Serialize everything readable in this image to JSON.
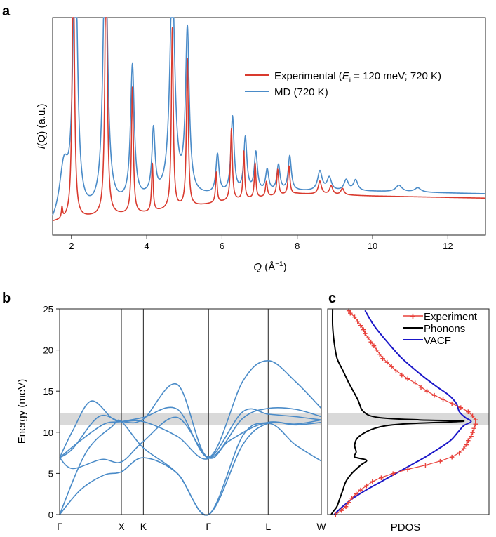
{
  "panels": {
    "a": "a",
    "b": "b",
    "c": "c"
  },
  "colors": {
    "experimental": "#d93a2e",
    "md": "#4a8bc8",
    "dispersion": "#4a8bc8",
    "experiment_c": "#e8403a",
    "phonons": "#000000",
    "vacf": "#1a16c8",
    "band": "#d9d9d9"
  },
  "chart_data": [
    {
      "type": "line",
      "panel": "a",
      "xlabel_main": "Q",
      "xlabel_rest": " (Å",
      "xlabel_sup": "−1",
      "xlabel_close": ")",
      "ylabel_main": "I",
      "ylabel_rest": "(Q) (a.u.)",
      "xlim": [
        1.5,
        13.0
      ],
      "ylim": [
        0,
        1
      ],
      "xticks": [
        2,
        4,
        6,
        8,
        10,
        12
      ],
      "xtick_labels": [
        "2",
        "4",
        "6",
        "8",
        "10",
        "12"
      ],
      "legend_placement": "top-right",
      "legend": {
        "experimental_pre": "Experimental (",
        "experimental_var": "E",
        "experimental_sub": "i",
        "experimental_post": " = 120 meV; 720 K)",
        "md": "MD (720 K)"
      },
      "series": [
        {
          "key": "experimental",
          "baseline": [
            [
              1.5,
              0.06
            ],
            [
              2.5,
              0.08
            ],
            [
              4.0,
              0.1
            ],
            [
              6.0,
              0.15
            ],
            [
              8.0,
              0.19
            ],
            [
              10.0,
              0.18
            ],
            [
              13.0,
              0.17
            ]
          ],
          "peaks": [
            [
              1.75,
              0.05,
              0.02
            ],
            [
              2.05,
              1.3,
              0.035
            ],
            [
              2.92,
              1.3,
              0.035
            ],
            [
              3.62,
              0.58,
              0.03
            ],
            [
              4.15,
              0.22,
              0.025
            ],
            [
              4.68,
              0.83,
              0.03
            ],
            [
              5.08,
              0.68,
              0.03
            ],
            [
              5.85,
              0.14,
              0.025
            ],
            [
              6.25,
              0.33,
              0.03
            ],
            [
              6.58,
              0.22,
              0.025
            ],
            [
              6.88,
              0.16,
              0.025
            ],
            [
              7.18,
              0.07,
              0.03
            ],
            [
              7.48,
              0.12,
              0.03
            ],
            [
              7.78,
              0.13,
              0.03
            ],
            [
              8.6,
              0.06,
              0.05
            ],
            [
              8.9,
              0.04,
              0.05
            ],
            [
              9.2,
              0.03,
              0.05
            ]
          ]
        },
        {
          "key": "md",
          "baseline": [
            [
              1.5,
              0.02
            ],
            [
              2.5,
              0.09
            ],
            [
              4.0,
              0.16
            ],
            [
              6.0,
              0.18
            ],
            [
              8.0,
              0.2
            ],
            [
              10.0,
              0.2
            ],
            [
              13.0,
              0.19
            ]
          ],
          "peaks": [
            [
              1.8,
              0.25,
              0.15
            ],
            [
              2.1,
              1.3,
              0.07
            ],
            [
              2.9,
              1.3,
              0.07
            ],
            [
              3.62,
              0.62,
              0.06
            ],
            [
              4.18,
              0.3,
              0.05
            ],
            [
              4.68,
              1.0,
              0.08
            ],
            [
              5.08,
              0.75,
              0.06
            ],
            [
              5.88,
              0.18,
              0.05
            ],
            [
              6.28,
              0.35,
              0.05
            ],
            [
              6.62,
              0.25,
              0.05
            ],
            [
              6.9,
              0.18,
              0.05
            ],
            [
              7.2,
              0.1,
              0.05
            ],
            [
              7.5,
              0.12,
              0.05
            ],
            [
              7.8,
              0.16,
              0.05
            ],
            [
              8.6,
              0.09,
              0.07
            ],
            [
              8.85,
              0.06,
              0.07
            ],
            [
              9.3,
              0.05,
              0.07
            ],
            [
              9.55,
              0.05,
              0.07
            ],
            [
              10.7,
              0.03,
              0.1
            ],
            [
              11.2,
              0.02,
              0.1
            ]
          ]
        }
      ]
    },
    {
      "type": "line",
      "panel": "b",
      "ylabel": "Energy (meV)",
      "ylim": [
        0,
        25
      ],
      "yticks": [
        0,
        5,
        10,
        15,
        20,
        25
      ],
      "ytick_labels": [
        "0",
        "5",
        "10",
        "15",
        "20",
        "25"
      ],
      "xlim": [
        0,
        1
      ],
      "kpoints": [
        0,
        0.236,
        0.32,
        0.569,
        0.797,
        1.0
      ],
      "kpoint_labels": [
        "Γ",
        "X",
        "K",
        "Γ",
        "L",
        "W"
      ],
      "highlight_band": [
        10.9,
        12.3
      ],
      "branches": [
        [
          [
            0,
            6.9
          ],
          [
            0.05,
            10.2
          ],
          [
            0.12,
            13.8
          ],
          [
            0.2,
            11.7
          ],
          [
            0.236,
            11.3
          ],
          [
            0.32,
            11.3
          ],
          [
            0.45,
            9.5
          ],
          [
            0.569,
            6.8
          ],
          [
            0.7,
            12.5
          ],
          [
            0.797,
            12.2
          ],
          [
            0.9,
            11.9
          ],
          [
            1.0,
            11.5
          ]
        ],
        [
          [
            0,
            6.9
          ],
          [
            0.05,
            8.0
          ],
          [
            0.15,
            11.9
          ],
          [
            0.236,
            11.3
          ],
          [
            0.32,
            11.6
          ],
          [
            0.45,
            15.8
          ],
          [
            0.569,
            7.0
          ],
          [
            0.7,
            16.2
          ],
          [
            0.797,
            18.7
          ],
          [
            0.9,
            16.2
          ],
          [
            1.0,
            12.9
          ]
        ],
        [
          [
            0,
            6.9
          ],
          [
            0.08,
            9.0
          ],
          [
            0.17,
            11.0
          ],
          [
            0.236,
            11.3
          ],
          [
            0.32,
            11.8
          ],
          [
            0.45,
            12.8
          ],
          [
            0.569,
            6.9
          ],
          [
            0.7,
            11.7
          ],
          [
            0.797,
            12.9
          ],
          [
            0.9,
            12.8
          ],
          [
            1.0,
            11.9
          ]
        ],
        [
          [
            0,
            6.9
          ],
          [
            0.05,
            5.6
          ],
          [
            0.16,
            6.7
          ],
          [
            0.236,
            6.4
          ],
          [
            0.32,
            8.9
          ],
          [
            0.45,
            11.8
          ],
          [
            0.569,
            6.9
          ],
          [
            0.65,
            9.0
          ],
          [
            0.797,
            11.1
          ],
          [
            0.9,
            8.5
          ],
          [
            1.0,
            6.5
          ]
        ],
        [
          [
            0,
            0.0
          ],
          [
            0.08,
            3.0
          ],
          [
            0.17,
            4.8
          ],
          [
            0.236,
            5.2
          ],
          [
            0.32,
            6.9
          ],
          [
            0.45,
            5.0
          ],
          [
            0.569,
            0.0
          ],
          [
            0.7,
            9.6
          ],
          [
            0.797,
            11.2
          ],
          [
            0.9,
            11.0
          ],
          [
            1.0,
            11.5
          ]
        ],
        [
          [
            0,
            0.0
          ],
          [
            0.1,
            7.5
          ],
          [
            0.2,
            10.7
          ],
          [
            0.236,
            11.3
          ],
          [
            0.32,
            8.1
          ],
          [
            0.45,
            5.0
          ],
          [
            0.569,
            0.0
          ],
          [
            0.7,
            8.5
          ],
          [
            0.797,
            11.1
          ],
          [
            0.9,
            10.9
          ],
          [
            1.0,
            11.2
          ]
        ]
      ]
    },
    {
      "type": "line",
      "panel": "c",
      "xlabel": "PDOS",
      "ylim": [
        0,
        25
      ],
      "legend_placement": "top-right",
      "legend": {
        "experiment": "Experiment",
        "phonons": "Phonons",
        "vacf": "VACF"
      },
      "series": [
        {
          "key": "experiment",
          "points": [
            [
              0.0,
              0.03
            ],
            [
              0.5,
              0.07
            ],
            [
              1.0,
              0.1
            ],
            [
              1.5,
              0.12
            ],
            [
              2.0,
              0.14
            ],
            [
              2.5,
              0.17
            ],
            [
              3.0,
              0.2
            ],
            [
              3.5,
              0.24
            ],
            [
              4.0,
              0.28
            ],
            [
              4.5,
              0.34
            ],
            [
              5.0,
              0.42
            ],
            [
              5.5,
              0.52
            ],
            [
              6.0,
              0.64
            ],
            [
              6.5,
              0.74
            ],
            [
              7.0,
              0.82
            ],
            [
              7.5,
              0.87
            ],
            [
              8.0,
              0.9
            ],
            [
              8.5,
              0.92
            ],
            [
              9.0,
              0.93
            ],
            [
              9.5,
              0.95
            ],
            [
              10.0,
              0.96
            ],
            [
              10.5,
              0.97
            ],
            [
              11.0,
              0.98
            ],
            [
              11.5,
              0.98
            ],
            [
              12.0,
              0.96
            ],
            [
              12.5,
              0.93
            ],
            [
              13.0,
              0.88
            ],
            [
              13.5,
              0.82
            ],
            [
              14.0,
              0.76
            ],
            [
              14.5,
              0.7
            ],
            [
              15.0,
              0.65
            ],
            [
              15.5,
              0.61
            ],
            [
              16.0,
              0.57
            ],
            [
              16.5,
              0.52
            ],
            [
              17.0,
              0.48
            ],
            [
              17.5,
              0.44
            ],
            [
              18.0,
              0.41
            ],
            [
              18.5,
              0.38
            ],
            [
              19.0,
              0.35
            ],
            [
              19.5,
              0.33
            ],
            [
              20.0,
              0.31
            ],
            [
              20.5,
              0.29
            ],
            [
              21.0,
              0.27
            ],
            [
              21.5,
              0.25
            ],
            [
              22.0,
              0.23
            ],
            [
              22.5,
              0.22
            ],
            [
              23.0,
              0.2
            ],
            [
              23.5,
              0.18
            ],
            [
              24.0,
              0.16
            ],
            [
              24.5,
              0.13
            ],
            [
              24.8,
              0.12
            ]
          ]
        },
        {
          "key": "phonons",
          "points": [
            [
              0.0,
              0.0
            ],
            [
              0.5,
              0.02
            ],
            [
              1.0,
              0.04
            ],
            [
              2.0,
              0.06
            ],
            [
              3.0,
              0.08
            ],
            [
              4.0,
              0.1
            ],
            [
              5.0,
              0.14
            ],
            [
              6.0,
              0.2
            ],
            [
              6.6,
              0.24
            ],
            [
              7.0,
              0.16
            ],
            [
              7.6,
              0.17
            ],
            [
              8.5,
              0.16
            ],
            [
              9.5,
              0.19
            ],
            [
              10.5,
              0.3
            ],
            [
              11.0,
              0.48
            ],
            [
              11.35,
              0.9
            ],
            [
              11.5,
              0.6
            ],
            [
              11.8,
              0.32
            ],
            [
              12.5,
              0.22
            ],
            [
              14.0,
              0.18
            ],
            [
              16.0,
              0.12
            ],
            [
              17.5,
              0.08
            ],
            [
              19.0,
              0.04
            ],
            [
              21.0,
              0.02
            ],
            [
              23.0,
              0.01
            ],
            [
              25.0,
              0.01
            ]
          ]
        },
        {
          "key": "vacf",
          "points": [
            [
              0.0,
              0.02
            ],
            [
              1.0,
              0.08
            ],
            [
              2.0,
              0.15
            ],
            [
              3.0,
              0.24
            ],
            [
              4.0,
              0.34
            ],
            [
              5.0,
              0.44
            ],
            [
              6.0,
              0.54
            ],
            [
              7.0,
              0.64
            ],
            [
              8.0,
              0.73
            ],
            [
              9.0,
              0.81
            ],
            [
              10.0,
              0.86
            ],
            [
              10.8,
              0.9
            ],
            [
              11.3,
              0.95
            ],
            [
              11.8,
              0.91
            ],
            [
              12.5,
              0.87
            ],
            [
              13.5,
              0.85
            ],
            [
              14.5,
              0.8
            ],
            [
              15.5,
              0.72
            ],
            [
              17.0,
              0.61
            ],
            [
              19.0,
              0.48
            ],
            [
              21.0,
              0.38
            ],
            [
              23.0,
              0.29
            ],
            [
              24.8,
              0.23
            ]
          ]
        }
      ]
    }
  ]
}
